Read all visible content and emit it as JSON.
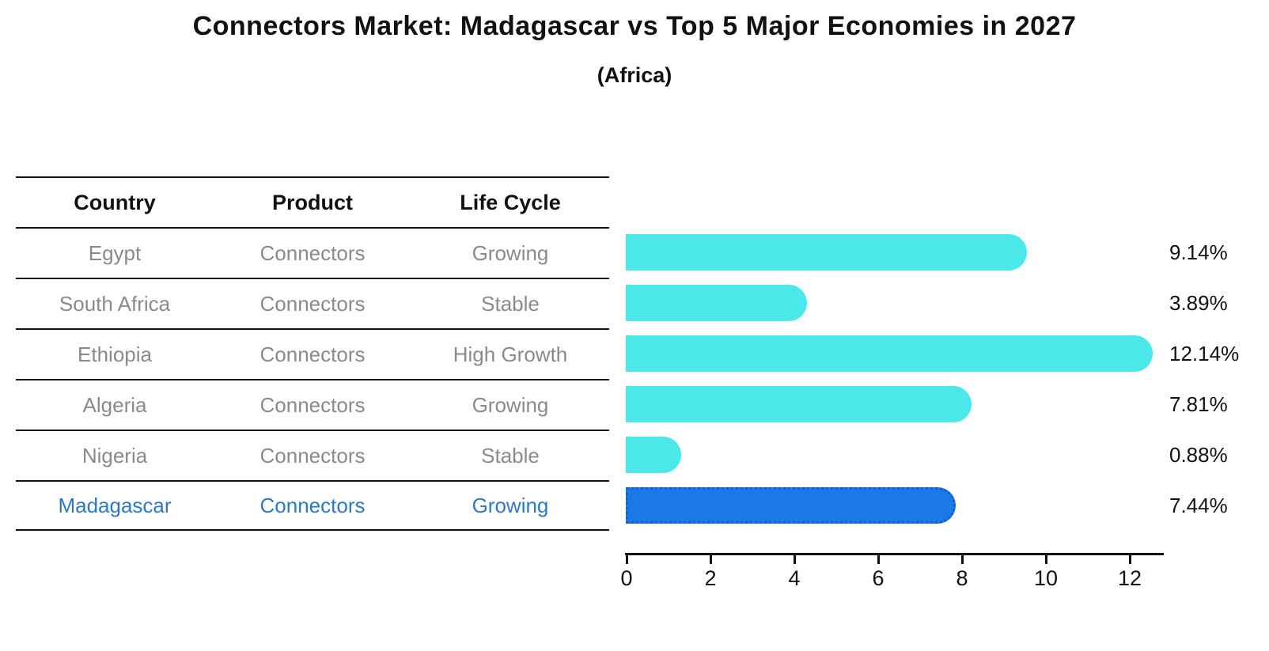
{
  "title": "Connectors Market: Madagascar vs Top 5 Major Economies in 2027",
  "subtitle": "(Africa)",
  "table": {
    "headers": [
      "Country",
      "Product",
      "Life Cycle"
    ],
    "rows": [
      {
        "country": "Egypt",
        "product": "Connectors",
        "life_cycle": "Growing"
      },
      {
        "country": "South Africa",
        "product": "Connectors",
        "life_cycle": "Stable"
      },
      {
        "country": "Ethiopia",
        "product": "Connectors",
        "life_cycle": "High Growth"
      },
      {
        "country": "Algeria",
        "product": "Connectors",
        "life_cycle": "Growing"
      },
      {
        "country": "Nigeria",
        "product": "Connectors",
        "life_cycle": "Stable"
      },
      {
        "country": "Madagascar",
        "product": "Connectors",
        "life_cycle": "Growing"
      }
    ]
  },
  "chart_data": {
    "type": "bar",
    "orientation": "horizontal",
    "categories": [
      "Egypt",
      "South Africa",
      "Ethiopia",
      "Algeria",
      "Nigeria",
      "Madagascar"
    ],
    "values": [
      9.14,
      3.89,
      12.14,
      7.81,
      0.88,
      7.44
    ],
    "value_labels": [
      "9.14%",
      "3.89%",
      "12.14%",
      "7.81%",
      "0.88%",
      "7.44%"
    ],
    "x_ticks": [
      0,
      2,
      4,
      6,
      8,
      10,
      12
    ],
    "xlim": [
      0,
      12.8
    ],
    "grid": false,
    "legend": false,
    "bar_color": "#4ae8e8",
    "highlight_index": 5,
    "highlight_color": "#1b78e8",
    "highlight_border_color": "#0e5fd2",
    "highlight_text_color": "#2878d0",
    "axis_color": "#111111",
    "table_text_color": "#8a8a8a"
  }
}
